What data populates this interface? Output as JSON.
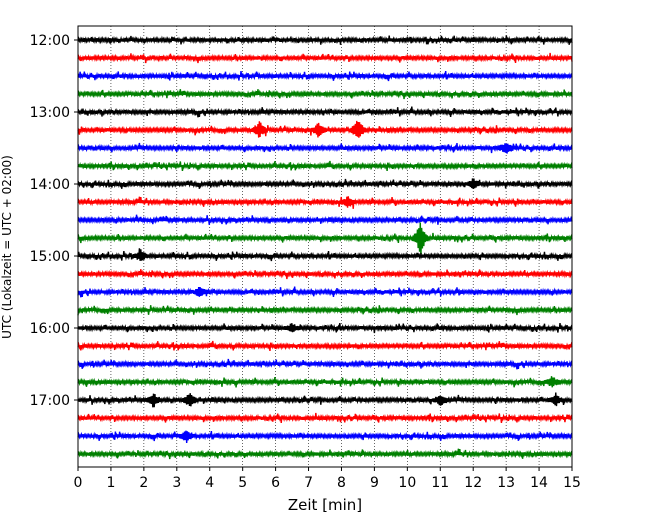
{
  "chart_data": {
    "type": "line",
    "title": "",
    "xlabel": "Zeit  [min]",
    "ylabel": "UTC (Lokalzeit = UTC + 02:00)",
    "xlim": [
      0,
      15
    ],
    "x_ticks": [
      "0",
      "1",
      "2",
      "3",
      "4",
      "5",
      "6",
      "7",
      "8",
      "9",
      "10",
      "11",
      "12",
      "13",
      "14",
      "15"
    ],
    "y_tick_labels": [
      "12:00",
      "13:00",
      "14:00",
      "15:00",
      "16:00",
      "17:00"
    ],
    "vertical_grid": true,
    "traces_per_hour": 4,
    "trace_start_times": [
      "12:00",
      "12:15",
      "12:30",
      "12:45",
      "13:00",
      "13:15",
      "13:30",
      "13:45",
      "14:00",
      "14:15",
      "14:30",
      "14:45",
      "15:00",
      "15:15",
      "15:30",
      "15:45",
      "16:00",
      "16:15",
      "16:30",
      "16:45",
      "17:00",
      "17:15",
      "17:30",
      "17:45"
    ],
    "trace_colors": [
      "#000000",
      "#ff0000",
      "#0000ff",
      "#008000"
    ],
    "events": [
      {
        "trace": 5,
        "minute": 5.5,
        "amplitude": 0.5
      },
      {
        "trace": 5,
        "minute": 7.3,
        "amplitude": 0.4
      },
      {
        "trace": 5,
        "minute": 8.5,
        "amplitude": 0.6
      },
      {
        "trace": 6,
        "minute": 13.0,
        "amplitude": 0.35
      },
      {
        "trace": 8,
        "minute": 12.0,
        "amplitude": 0.3
      },
      {
        "trace": 9,
        "minute": 8.2,
        "amplitude": 0.3
      },
      {
        "trace": 11,
        "minute": 10.4,
        "amplitude": 0.9
      },
      {
        "trace": 12,
        "minute": 1.9,
        "amplitude": 0.3
      },
      {
        "trace": 14,
        "minute": 3.7,
        "amplitude": 0.3
      },
      {
        "trace": 16,
        "minute": 6.5,
        "amplitude": 0.25
      },
      {
        "trace": 19,
        "minute": 14.4,
        "amplitude": 0.3
      },
      {
        "trace": 20,
        "minute": 2.3,
        "amplitude": 0.35
      },
      {
        "trace": 20,
        "minute": 3.4,
        "amplitude": 0.4
      },
      {
        "trace": 20,
        "minute": 11.0,
        "amplitude": 0.35
      },
      {
        "trace": 20,
        "minute": 14.5,
        "amplitude": 0.35
      },
      {
        "trace": 22,
        "minute": 3.3,
        "amplitude": 0.35
      }
    ]
  }
}
